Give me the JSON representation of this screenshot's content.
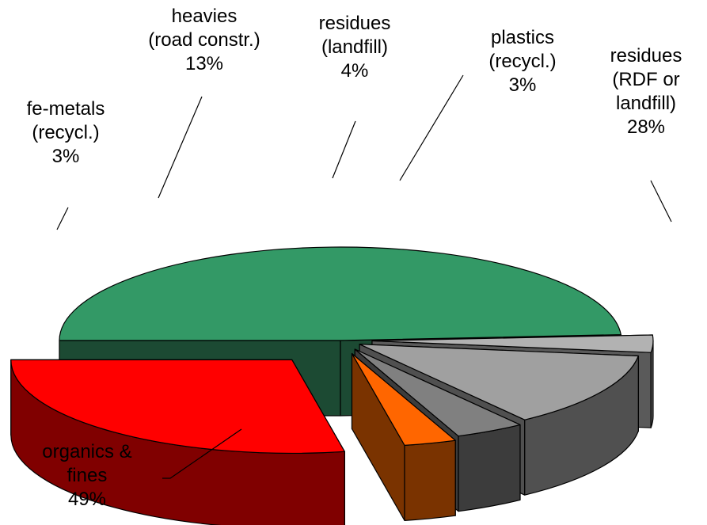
{
  "chart_data": {
    "type": "pie",
    "style": "3d-exploded",
    "title": "",
    "slices": [
      {
        "lines": [
          "organics &",
          "fines"
        ],
        "value": 49,
        "pct_label": "49%",
        "top": "#339966",
        "side": "#1c4a33"
      },
      {
        "lines": [
          "fe-metals",
          "(recycl.)"
        ],
        "value": 3,
        "pct_label": "3%",
        "top": "#b2b2b2",
        "side": "#5a5a5a"
      },
      {
        "lines": [
          "heavies",
          "(road constr.)"
        ],
        "value": 13,
        "pct_label": "13%",
        "top": "#a0a0a0",
        "side": "#505050"
      },
      {
        "lines": [
          "residues",
          "(landfill)"
        ],
        "value": 4,
        "pct_label": "4%",
        "top": "#808080",
        "side": "#3c3c3c"
      },
      {
        "lines": [
          "plastics",
          "(recycl.)"
        ],
        "value": 3,
        "pct_label": "3%",
        "top": "#ff6600",
        "side": "#7a3300"
      },
      {
        "lines": [
          "residues",
          "(RDF or",
          "landfill)"
        ],
        "value": 28,
        "pct_label": "28%",
        "top": "#ff0000",
        "side": "#800000"
      }
    ]
  }
}
